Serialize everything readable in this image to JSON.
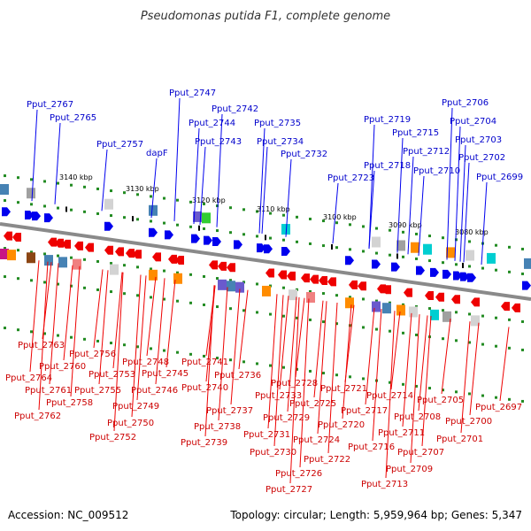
{
  "title": "Pseudomonas putida F1, complete genome",
  "footer": {
    "accession": "Accession: NC_009512",
    "summary": "Topology: circular; Length: 5,959,964 bp; Genes: 5,347"
  },
  "colors": {
    "forward_gene": "#0000ee",
    "reverse_gene": "#ee0000",
    "forward_label": "#0000cc",
    "reverse_label": "#cc0000",
    "backbone": "#888888",
    "dots": "#228b22"
  },
  "ticks": [
    "3140 kbp",
    "3130 kbp",
    "3120 kbp",
    "3110 kbp",
    "3100 kbp",
    "3090 kbp",
    "3080 kbp"
  ],
  "forward_genes": [
    "Pput_2767",
    "Pput_2765",
    "Pput_2757",
    "dapF",
    "Pput_2747",
    "Pput_2744",
    "Pput_2743",
    "Pput_2742",
    "Pput_2735",
    "Pput_2734",
    "Pput_2732",
    "Pput_2723",
    "Pput_2719",
    "Pput_2718",
    "Pput_2715",
    "Pput_2712",
    "Pput_2710",
    "Pput_2706",
    "Pput_2704",
    "Pput_2703",
    "Pput_2702",
    "Pput_2699"
  ],
  "reverse_genes": [
    "Pput_2763",
    "Pput_2764",
    "Pput_2760",
    "Pput_2761",
    "Pput_2762",
    "Pput_2756",
    "Pput_2753",
    "Pput_2755",
    "Pput_2758",
    "Pput_2748",
    "Pput_2745",
    "Pput_2746",
    "Pput_2749",
    "Pput_2750",
    "Pput_2752",
    "Pput_2741",
    "Pput_2740",
    "Pput_2736",
    "Pput_2737",
    "Pput_2738",
    "Pput_2739",
    "Pput_2733",
    "Pput_2728",
    "Pput_2729",
    "Pput_2731",
    "Pput_2730",
    "Pput_2726",
    "Pput_2727",
    "Pput_2725",
    "Pput_2724",
    "Pput_2722",
    "Pput_2721",
    "Pput_2720",
    "Pput_2717",
    "Pput_2716",
    "Pput_2714",
    "Pput_2713",
    "Pput_2711",
    "Pput_2708",
    "Pput_2709",
    "Pput_2707",
    "Pput_2705",
    "Pput_2700",
    "Pput_2701",
    "Pput_2697"
  ]
}
